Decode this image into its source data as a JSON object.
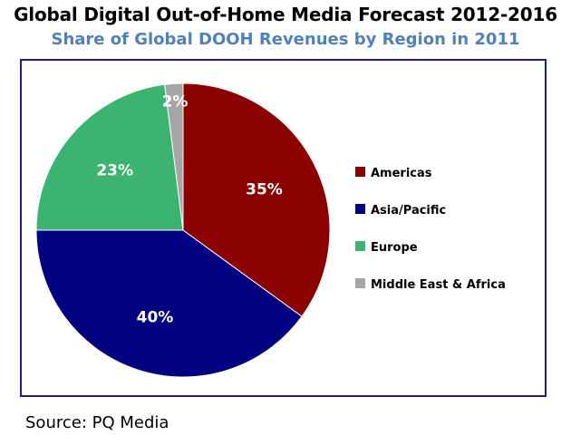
{
  "header": {
    "title": "Global Digital Out-of-Home Media Forecast 2012-2016",
    "subtitle": "Share of Global DOOH Revenues by Region in 2011"
  },
  "footer": {
    "source": "Source: PQ Media"
  },
  "chart_data": {
    "type": "pie",
    "title": "Global Digital Out-of-Home Media Forecast 2012-2016",
    "subtitle": "Share of Global DOOH Revenues by Region in 2011",
    "categories": [
      "Americas",
      "Asia/Pacific",
      "Europe",
      "Middle East & Africa"
    ],
    "values": [
      35,
      40,
      23,
      2
    ],
    "labels": [
      "35%",
      "40%",
      "23%",
      "2%"
    ],
    "colors": [
      "#8b0000",
      "#000080",
      "#3cb371",
      "#a6a6a6"
    ],
    "label_colors": [
      "#ffffff",
      "#ffffff",
      "#ffffff",
      "#ffffff"
    ],
    "legend_position": "right",
    "start": "top, clockwise"
  }
}
